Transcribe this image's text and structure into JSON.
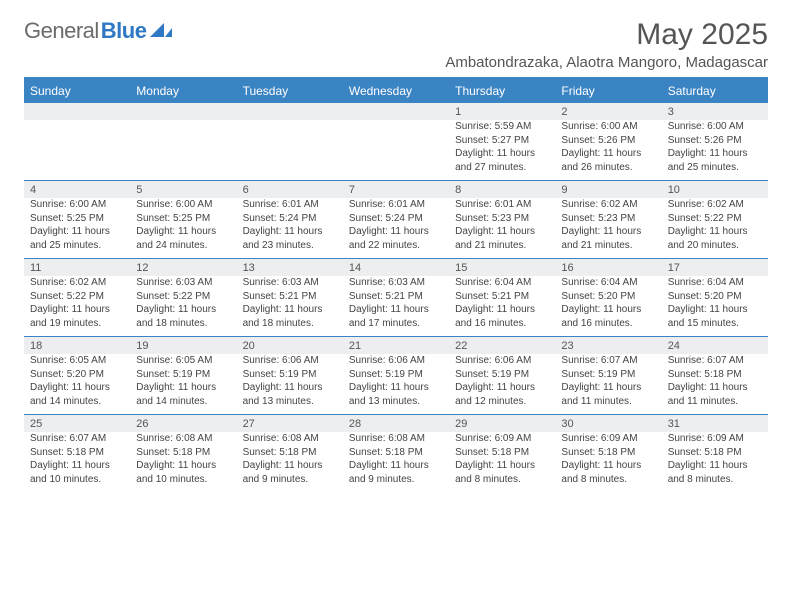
{
  "logo": {
    "text_gray": "General",
    "text_blue": "Blue",
    "blue_color": "#2f78c3"
  },
  "title": "May 2025",
  "location": "Ambatondrazaka, Alaotra Mangoro, Madagascar",
  "colors": {
    "header_bg": "#3b84c4",
    "daynum_bg": "#eceeef",
    "divider": "#3b84c4",
    "row_sep": "#3b84c4"
  },
  "weekdays": [
    "Sunday",
    "Monday",
    "Tuesday",
    "Wednesday",
    "Thursday",
    "Friday",
    "Saturday"
  ],
  "weeks": [
    {
      "days": [
        null,
        null,
        null,
        null,
        {
          "n": "1",
          "sr": "5:59 AM",
          "ss": "5:27 PM",
          "dl": "11 hours and 27 minutes."
        },
        {
          "n": "2",
          "sr": "6:00 AM",
          "ss": "5:26 PM",
          "dl": "11 hours and 26 minutes."
        },
        {
          "n": "3",
          "sr": "6:00 AM",
          "ss": "5:26 PM",
          "dl": "11 hours and 25 minutes."
        }
      ]
    },
    {
      "days": [
        {
          "n": "4",
          "sr": "6:00 AM",
          "ss": "5:25 PM",
          "dl": "11 hours and 25 minutes."
        },
        {
          "n": "5",
          "sr": "6:00 AM",
          "ss": "5:25 PM",
          "dl": "11 hours and 24 minutes."
        },
        {
          "n": "6",
          "sr": "6:01 AM",
          "ss": "5:24 PM",
          "dl": "11 hours and 23 minutes."
        },
        {
          "n": "7",
          "sr": "6:01 AM",
          "ss": "5:24 PM",
          "dl": "11 hours and 22 minutes."
        },
        {
          "n": "8",
          "sr": "6:01 AM",
          "ss": "5:23 PM",
          "dl": "11 hours and 21 minutes."
        },
        {
          "n": "9",
          "sr": "6:02 AM",
          "ss": "5:23 PM",
          "dl": "11 hours and 21 minutes."
        },
        {
          "n": "10",
          "sr": "6:02 AM",
          "ss": "5:22 PM",
          "dl": "11 hours and 20 minutes."
        }
      ]
    },
    {
      "days": [
        {
          "n": "11",
          "sr": "6:02 AM",
          "ss": "5:22 PM",
          "dl": "11 hours and 19 minutes."
        },
        {
          "n": "12",
          "sr": "6:03 AM",
          "ss": "5:22 PM",
          "dl": "11 hours and 18 minutes."
        },
        {
          "n": "13",
          "sr": "6:03 AM",
          "ss": "5:21 PM",
          "dl": "11 hours and 18 minutes."
        },
        {
          "n": "14",
          "sr": "6:03 AM",
          "ss": "5:21 PM",
          "dl": "11 hours and 17 minutes."
        },
        {
          "n": "15",
          "sr": "6:04 AM",
          "ss": "5:21 PM",
          "dl": "11 hours and 16 minutes."
        },
        {
          "n": "16",
          "sr": "6:04 AM",
          "ss": "5:20 PM",
          "dl": "11 hours and 16 minutes."
        },
        {
          "n": "17",
          "sr": "6:04 AM",
          "ss": "5:20 PM",
          "dl": "11 hours and 15 minutes."
        }
      ]
    },
    {
      "days": [
        {
          "n": "18",
          "sr": "6:05 AM",
          "ss": "5:20 PM",
          "dl": "11 hours and 14 minutes."
        },
        {
          "n": "19",
          "sr": "6:05 AM",
          "ss": "5:19 PM",
          "dl": "11 hours and 14 minutes."
        },
        {
          "n": "20",
          "sr": "6:06 AM",
          "ss": "5:19 PM",
          "dl": "11 hours and 13 minutes."
        },
        {
          "n": "21",
          "sr": "6:06 AM",
          "ss": "5:19 PM",
          "dl": "11 hours and 13 minutes."
        },
        {
          "n": "22",
          "sr": "6:06 AM",
          "ss": "5:19 PM",
          "dl": "11 hours and 12 minutes."
        },
        {
          "n": "23",
          "sr": "6:07 AM",
          "ss": "5:19 PM",
          "dl": "11 hours and 11 minutes."
        },
        {
          "n": "24",
          "sr": "6:07 AM",
          "ss": "5:18 PM",
          "dl": "11 hours and 11 minutes."
        }
      ]
    },
    {
      "days": [
        {
          "n": "25",
          "sr": "6:07 AM",
          "ss": "5:18 PM",
          "dl": "11 hours and 10 minutes."
        },
        {
          "n": "26",
          "sr": "6:08 AM",
          "ss": "5:18 PM",
          "dl": "11 hours and 10 minutes."
        },
        {
          "n": "27",
          "sr": "6:08 AM",
          "ss": "5:18 PM",
          "dl": "11 hours and 9 minutes."
        },
        {
          "n": "28",
          "sr": "6:08 AM",
          "ss": "5:18 PM",
          "dl": "11 hours and 9 minutes."
        },
        {
          "n": "29",
          "sr": "6:09 AM",
          "ss": "5:18 PM",
          "dl": "11 hours and 8 minutes."
        },
        {
          "n": "30",
          "sr": "6:09 AM",
          "ss": "5:18 PM",
          "dl": "11 hours and 8 minutes."
        },
        {
          "n": "31",
          "sr": "6:09 AM",
          "ss": "5:18 PM",
          "dl": "11 hours and 8 minutes."
        }
      ]
    }
  ],
  "labels": {
    "sunrise": "Sunrise: ",
    "sunset": "Sunset: ",
    "daylight": "Daylight: "
  }
}
